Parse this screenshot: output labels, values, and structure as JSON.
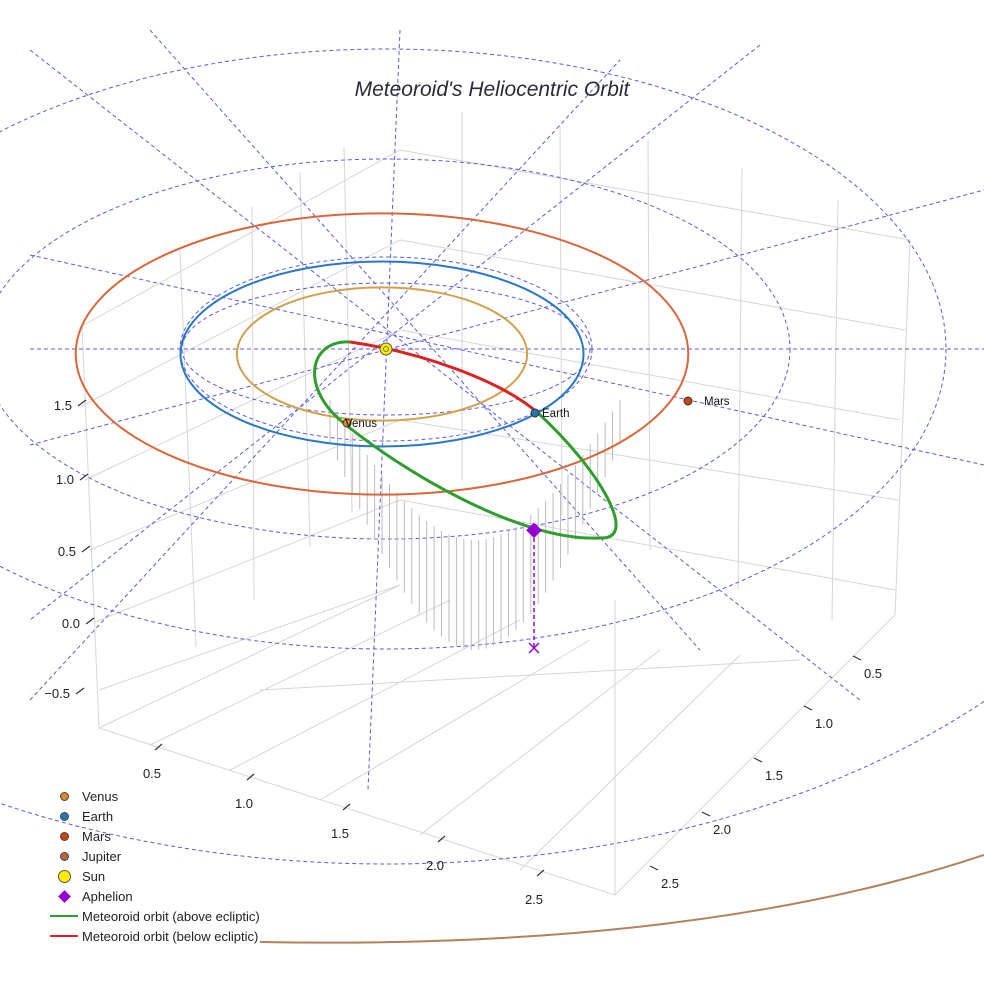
{
  "chart_data": {
    "type": "line3d",
    "title": "Meteoroid's Heliocentric Orbit",
    "axes": {
      "x_ticks": [
        "0.5",
        "1.0",
        "1.5",
        "2.0",
        "2.5"
      ],
      "y_ticks": [
        "0.5",
        "1.0",
        "1.5",
        "2.0",
        "2.5"
      ],
      "z_ticks": [
        "1.5",
        "1.0",
        "0.5",
        "0.0",
        "−0.5"
      ],
      "zlim": [
        -0.6,
        1.9
      ]
    },
    "planet_orbits": [
      {
        "name": "Venus",
        "radius_au": 0.72,
        "color": "#d4a04a"
      },
      {
        "name": "Earth",
        "radius_au": 1.0,
        "color": "#2a78c8"
      },
      {
        "name": "Mars",
        "radius_au": 1.52,
        "color": "#d9673a"
      },
      {
        "name": "Jupiter",
        "radius_au": 5.2,
        "color": "#b5805c"
      }
    ],
    "planet_labels": [
      {
        "name": "Venus",
        "color": "#d9882a"
      },
      {
        "name": "Earth",
        "color": "#1f77b4"
      },
      {
        "name": "Mars",
        "color": "#cc4411"
      }
    ],
    "meteoroid_orbit": {
      "above_color": "#2e9e2e",
      "below_color": "#e02020",
      "aphelion_color": "#9400d3"
    }
  },
  "legend": [
    {
      "label": "Venus",
      "symbol": "dot",
      "color": "#d9882a"
    },
    {
      "label": "Earth",
      "symbol": "dot",
      "color": "#1f77b4"
    },
    {
      "label": "Mars",
      "symbol": "dot",
      "color": "#cc4411"
    },
    {
      "label": "Jupiter",
      "symbol": "dot",
      "color": "#b8653a"
    },
    {
      "label": "Sun",
      "symbol": "sun",
      "color": "#ffee00"
    },
    {
      "label": "Aphelion",
      "symbol": "diamond",
      "color": "#9400d3"
    },
    {
      "label": "Meteoroid orbit (above ecliptic)",
      "symbol": "line",
      "color": "#2e9e2e"
    },
    {
      "label": "Meteoroid orbit (below ecliptic)",
      "symbol": "line",
      "color": "#e02020"
    }
  ]
}
